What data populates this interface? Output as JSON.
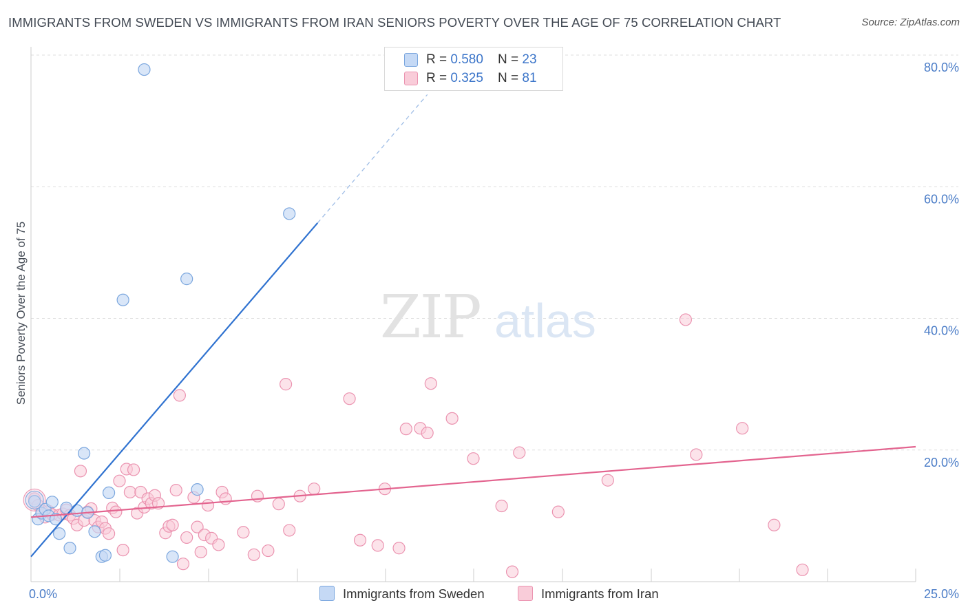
{
  "header": {
    "title": "IMMIGRANTS FROM SWEDEN VS IMMIGRANTS FROM IRAN SENIORS POVERTY OVER THE AGE OF 75 CORRELATION CHART",
    "source": "Source: ZipAtlas.com"
  },
  "watermark": {
    "zip": "ZIP",
    "atlas": "atlas"
  },
  "legend": {
    "sweden": {
      "r_label": "R = ",
      "r_value": "0.580",
      "n_label": "N = ",
      "n_value": "23",
      "name": "Immigrants from Sweden"
    },
    "iran": {
      "r_label": "R = ",
      "r_value": "0.325",
      "n_label": "N = ",
      "n_value": "81",
      "name": "Immigrants from Iran"
    }
  },
  "colors": {
    "sweden_fill": "#c5d9f5",
    "sweden_stroke": "#7aa6de",
    "sweden_line": "#2f72d0",
    "iran_fill": "#f9ccd9",
    "iran_stroke": "#eb93b0",
    "iran_line": "#e3648f",
    "grid": "#dddddd",
    "tick_text": "#4a7cc7"
  },
  "chart_data": {
    "type": "scatter",
    "title": "IMMIGRANTS FROM SWEDEN VS IMMIGRANTS FROM IRAN SENIORS POVERTY OVER THE AGE OF 75 CORRELATION CHART",
    "xlabel": "",
    "ylabel": "Seniors Poverty Over the Age of 75",
    "xlim": [
      0,
      25
    ],
    "ylim": [
      0,
      80
    ],
    "x_tick_labels": [
      "0.0%",
      "25.0%"
    ],
    "y_ticks": [
      20,
      40,
      60,
      80
    ],
    "y_tick_labels": [
      "20.0%",
      "40.0%",
      "60.0%",
      "80.0%"
    ],
    "grid": true,
    "series": [
      {
        "name": "Immigrants from Sweden",
        "r": 0.58,
        "n": 23,
        "trend": {
          "x0": 0,
          "y0": 3.8,
          "x1": 8.1,
          "y1": 54.5,
          "dash_x1": 11.2,
          "dash_y1": 74
        },
        "points": [
          [
            0.1,
            12.2
          ],
          [
            0.2,
            9.5
          ],
          [
            0.3,
            10.4
          ],
          [
            0.4,
            11.0
          ],
          [
            0.5,
            10.0
          ],
          [
            0.6,
            12.1
          ],
          [
            0.7,
            9.5
          ],
          [
            0.8,
            7.3
          ],
          [
            1.0,
            11.2
          ],
          [
            1.1,
            5.1
          ],
          [
            1.3,
            10.8
          ],
          [
            1.5,
            19.5
          ],
          [
            1.6,
            10.5
          ],
          [
            1.8,
            7.6
          ],
          [
            2.0,
            3.8
          ],
          [
            2.1,
            4.0
          ],
          [
            2.2,
            13.5
          ],
          [
            2.6,
            42.8
          ],
          [
            3.2,
            77.8
          ],
          [
            4.0,
            3.8
          ],
          [
            4.4,
            46.0
          ],
          [
            4.7,
            14.0
          ],
          [
            7.3,
            55.9
          ]
        ]
      },
      {
        "name": "Immigrants from Iran",
        "r": 0.325,
        "n": 81,
        "trend": {
          "x0": 0,
          "y0": 9.8,
          "x1": 25,
          "y1": 20.5
        },
        "points": [
          [
            0.1,
            12.6
          ],
          [
            0.2,
            11.6
          ],
          [
            0.3,
            10.8
          ],
          [
            0.4,
            9.8
          ],
          [
            0.5,
            10.7
          ],
          [
            0.6,
            10.2
          ],
          [
            0.8,
            10.1
          ],
          [
            0.9,
            10.3
          ],
          [
            1.0,
            10.9
          ],
          [
            1.1,
            10.1
          ],
          [
            1.2,
            9.6
          ],
          [
            1.3,
            8.6
          ],
          [
            1.4,
            16.8
          ],
          [
            1.5,
            9.3
          ],
          [
            1.6,
            10.6
          ],
          [
            1.7,
            11.1
          ],
          [
            1.8,
            9.3
          ],
          [
            1.9,
            8.3
          ],
          [
            2.0,
            9.1
          ],
          [
            2.1,
            8.1
          ],
          [
            2.2,
            7.3
          ],
          [
            2.3,
            11.2
          ],
          [
            2.4,
            10.6
          ],
          [
            2.5,
            15.3
          ],
          [
            2.6,
            4.8
          ],
          [
            2.7,
            17.1
          ],
          [
            2.8,
            13.6
          ],
          [
            2.9,
            17.0
          ],
          [
            3.0,
            10.4
          ],
          [
            3.1,
            13.6
          ],
          [
            3.2,
            11.3
          ],
          [
            3.3,
            12.6
          ],
          [
            3.4,
            11.9
          ],
          [
            3.5,
            13.1
          ],
          [
            3.6,
            11.9
          ],
          [
            3.8,
            7.4
          ],
          [
            3.9,
            8.4
          ],
          [
            4.0,
            8.6
          ],
          [
            4.1,
            13.9
          ],
          [
            4.2,
            28.3
          ],
          [
            4.3,
            2.7
          ],
          [
            4.4,
            6.7
          ],
          [
            4.6,
            12.8
          ],
          [
            4.7,
            8.3
          ],
          [
            4.8,
            4.5
          ],
          [
            4.9,
            7.1
          ],
          [
            5.0,
            11.6
          ],
          [
            5.1,
            6.6
          ],
          [
            5.3,
            5.6
          ],
          [
            5.4,
            13.6
          ],
          [
            5.5,
            12.6
          ],
          [
            6.0,
            7.5
          ],
          [
            6.3,
            4.1
          ],
          [
            6.4,
            13.0
          ],
          [
            6.7,
            4.7
          ],
          [
            7.0,
            11.8
          ],
          [
            7.2,
            30.0
          ],
          [
            7.3,
            7.8
          ],
          [
            7.6,
            13.0
          ],
          [
            8.0,
            14.1
          ],
          [
            9.0,
            27.8
          ],
          [
            9.3,
            6.3
          ],
          [
            9.8,
            5.5
          ],
          [
            10.0,
            14.1
          ],
          [
            10.4,
            5.1
          ],
          [
            10.6,
            23.2
          ],
          [
            11.0,
            23.3
          ],
          [
            11.2,
            22.6
          ],
          [
            11.3,
            30.1
          ],
          [
            11.9,
            24.8
          ],
          [
            12.5,
            18.7
          ],
          [
            13.3,
            11.5
          ],
          [
            13.6,
            1.5
          ],
          [
            13.8,
            19.6
          ],
          [
            14.9,
            10.6
          ],
          [
            16.3,
            15.4
          ],
          [
            18.5,
            39.8
          ],
          [
            18.8,
            19.3
          ],
          [
            20.1,
            23.3
          ],
          [
            21.0,
            8.6
          ],
          [
            21.8,
            1.8
          ]
        ]
      }
    ]
  }
}
